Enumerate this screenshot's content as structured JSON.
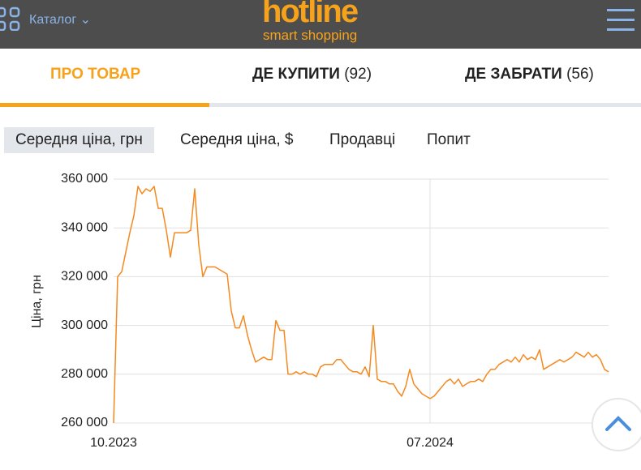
{
  "header": {
    "catalog": "Каталог",
    "logo": "hotline",
    "tagline": "smart shopping"
  },
  "tabs": [
    {
      "label": "ПРО ТОВАР"
    },
    {
      "label": "ДЕ КУПИТИ",
      "count": "(92)"
    },
    {
      "label": "ДЕ ЗАБРАТИ",
      "count": "(56)"
    }
  ],
  "chart_tabs": [
    "Середня ціна, грн",
    "Середня ціна, $",
    "Продавці",
    "Попит"
  ],
  "chart_data": {
    "type": "line",
    "y_label": "Ціна, грн",
    "categories": [
      "10.2023",
      null,
      null,
      null,
      null,
      null,
      null,
      null,
      null,
      null,
      null,
      null,
      null,
      null,
      null,
      null,
      null,
      null,
      null,
      null,
      null,
      null,
      null,
      null,
      null,
      null,
      null,
      null,
      null,
      null,
      null,
      null,
      null,
      null,
      null,
      null,
      null,
      null,
      null,
      null,
      null,
      null,
      null,
      null,
      null,
      null,
      null,
      null,
      null,
      null,
      null,
      null,
      null,
      null,
      null,
      null,
      null,
      null,
      null,
      null,
      null,
      null,
      null,
      null,
      null,
      null,
      null,
      null,
      null,
      null,
      null,
      null,
      null,
      null,
      null,
      null,
      null,
      null,
      "07.2024",
      null,
      null,
      null,
      null,
      null,
      null,
      null,
      null,
      null,
      null,
      null,
      null,
      null,
      null,
      null,
      null,
      null,
      null,
      null,
      null,
      null,
      null,
      null,
      null,
      null,
      null,
      null,
      null,
      null,
      null,
      null,
      null,
      null,
      null,
      null,
      null,
      null,
      null,
      null,
      null,
      null,
      null,
      null,
      null
    ],
    "series": [
      {
        "name": "Середня ціна, грн",
        "color": "#f5891f",
        "values": [
          260000,
          320000,
          322000,
          330000,
          338000,
          345000,
          357000,
          354000,
          356000,
          355000,
          357000,
          348000,
          348000,
          339000,
          328000,
          338000,
          338000,
          338000,
          338000,
          339000,
          356000,
          333000,
          320000,
          324000,
          324000,
          324000,
          323000,
          322000,
          321000,
          306000,
          299000,
          299000,
          304000,
          296000,
          290000,
          285000,
          286000,
          287000,
          286000,
          286000,
          302000,
          298000,
          298000,
          280000,
          280000,
          281000,
          280000,
          281000,
          280000,
          280000,
          279000,
          283000,
          284000,
          284000,
          284000,
          286000,
          286000,
          284000,
          282000,
          281000,
          281000,
          280000,
          283000,
          279000,
          300000,
          278000,
          277000,
          277000,
          276000,
          276000,
          273000,
          271000,
          275000,
          282000,
          276000,
          274000,
          272000,
          271000,
          270000,
          271000,
          273000,
          275000,
          277000,
          278000,
          276000,
          278000,
          275000,
          276000,
          277000,
          277000,
          278000,
          277000,
          280000,
          282000,
          282000,
          284000,
          285000,
          286000,
          285000,
          287000,
          285000,
          288000,
          286000,
          287000,
          286000,
          290000,
          282000,
          283000,
          284000,
          285000,
          286000,
          285000,
          286000,
          287000,
          289000,
          288000,
          287000,
          289000,
          287000,
          288000,
          286000,
          282000,
          281000
        ]
      }
    ],
    "ylim": [
      260000,
      360000
    ],
    "yticks": [
      {
        "value": 260000,
        "label": "260 000"
      },
      {
        "value": 280000,
        "label": "280 000"
      },
      {
        "value": 300000,
        "label": "300 000"
      },
      {
        "value": 320000,
        "label": "320 000"
      },
      {
        "value": 340000,
        "label": "340 000"
      },
      {
        "value": 360000,
        "label": "360 000"
      }
    ],
    "grid": true
  }
}
